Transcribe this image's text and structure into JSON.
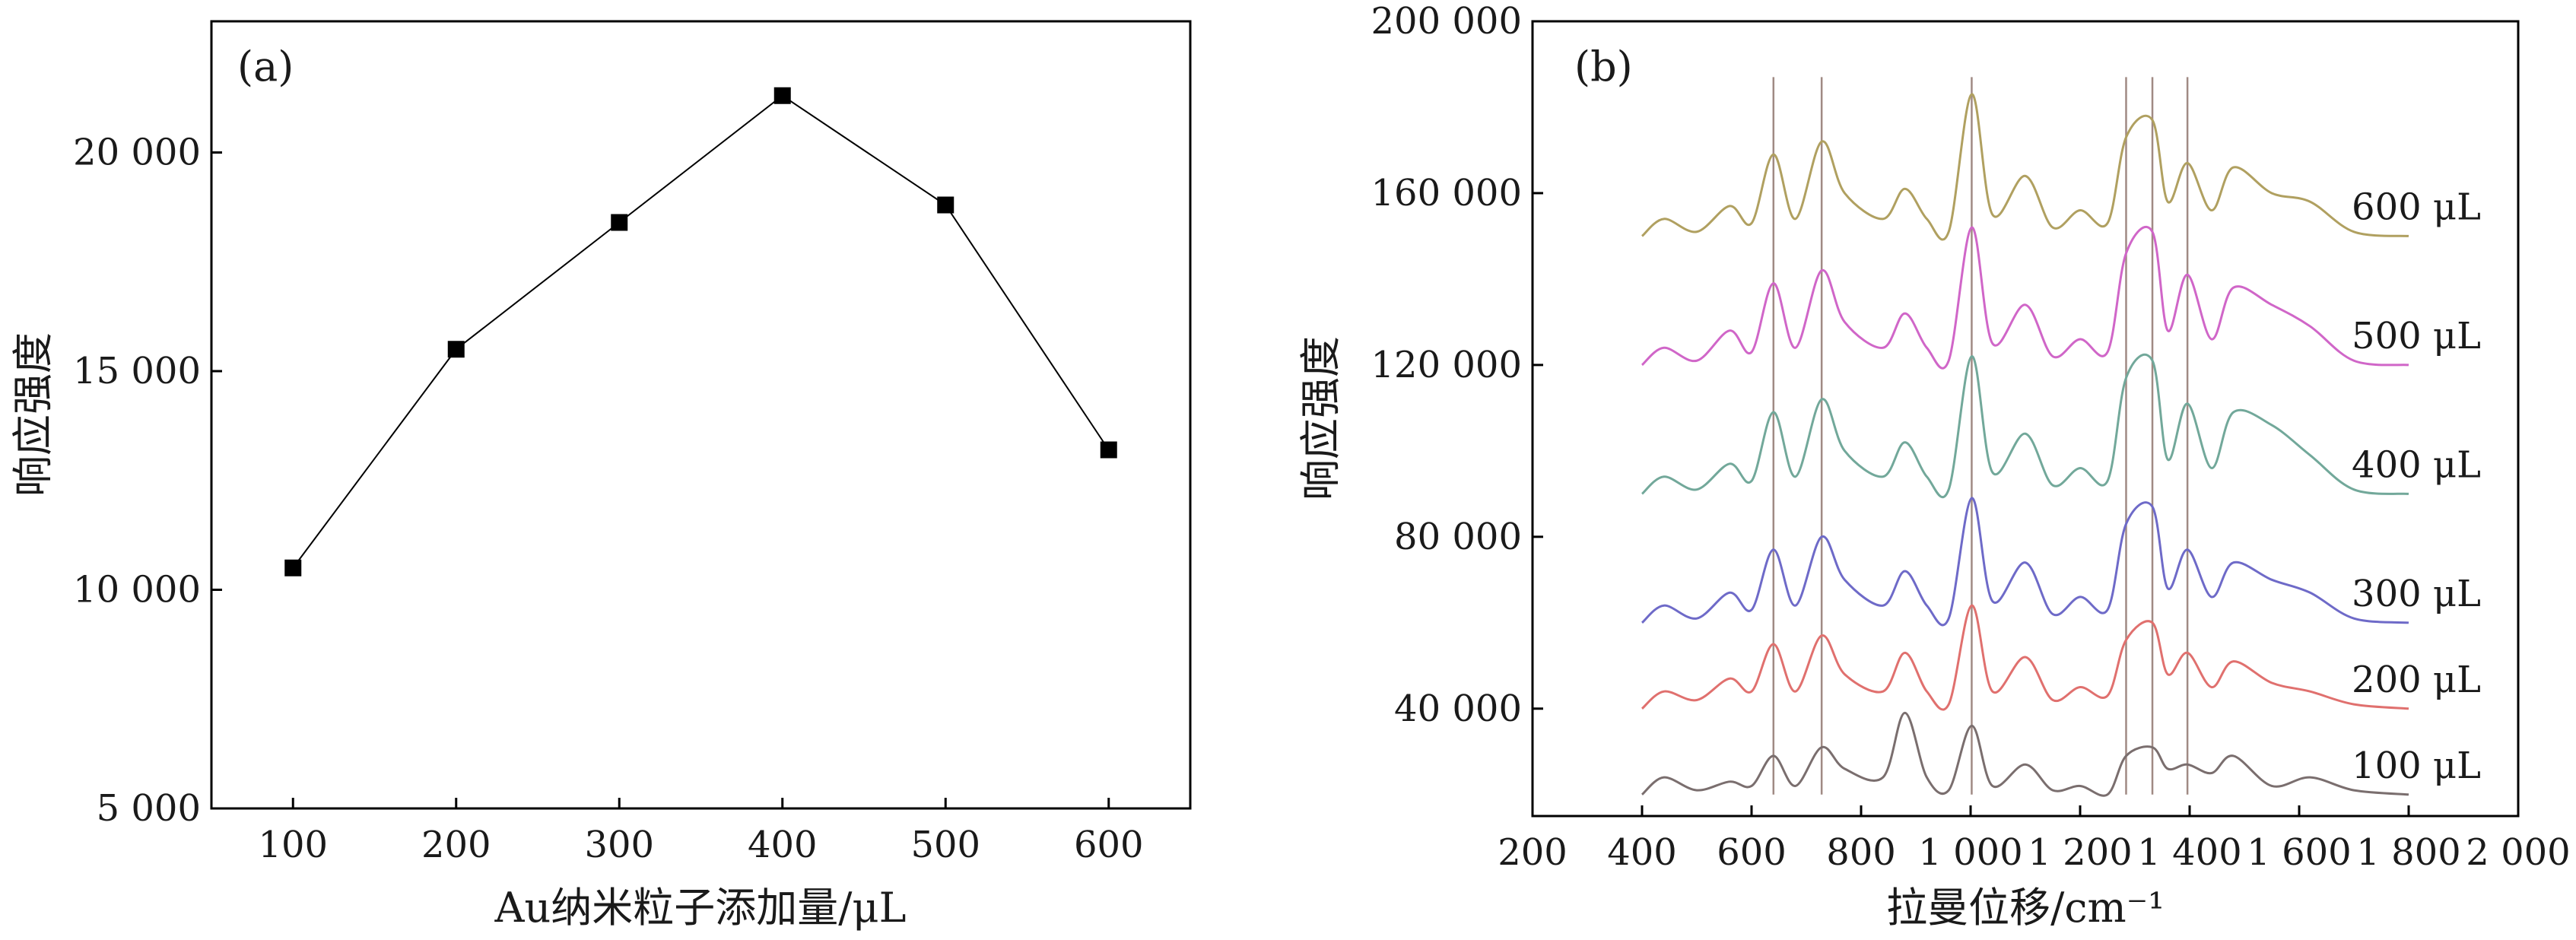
{
  "chart_data": [
    {
      "type": "line",
      "panel_label": "(a)",
      "xlabel": "Au纳米粒子添加量/μL",
      "ylabel": "响应强度",
      "xlim": [
        50,
        650
      ],
      "ylim": [
        5000,
        23000
      ],
      "x": [
        100,
        200,
        300,
        400,
        500,
        600
      ],
      "x_tick_labels": [
        "100",
        "200",
        "300",
        "400",
        "500",
        "600"
      ],
      "y_ticks": [
        5000,
        10000,
        15000,
        20000
      ],
      "y_tick_labels": [
        "5 000",
        "10 000",
        "15 000",
        "20 000"
      ],
      "series": [
        {
          "values": [
            10500,
            15500,
            18400,
            21300,
            18800,
            13200
          ],
          "color": "#000000",
          "marker": "square"
        }
      ],
      "grid": false
    },
    {
      "type": "line",
      "panel_label": "(b)",
      "xlabel": "拉曼位移/cm⁻¹",
      "ylabel": "响应强度",
      "xlim": [
        200,
        2000
      ],
      "ylim": [
        15000,
        200000
      ],
      "x_ticks": [
        200,
        400,
        600,
        800,
        1000,
        1200,
        1400,
        1600,
        1800,
        2000
      ],
      "x_tick_labels": [
        "200",
        "400",
        "600",
        "800",
        "1 000",
        "1 200",
        "1 400",
        "1 600",
        "1 800",
        "2 000"
      ],
      "y_ticks": [
        40000,
        80000,
        120000,
        160000,
        200000
      ],
      "y_tick_labels": [
        "40 000",
        "80 000",
        "120 000",
        "160 000",
        "200 000"
      ],
      "reference_lines_x": [
        640,
        728,
        1002,
        1284,
        1332,
        1396
      ],
      "reference_line_color": "#a08a84",
      "x": [
        400,
        440,
        500,
        560,
        600,
        640,
        680,
        728,
        770,
        840,
        880,
        920,
        960,
        1002,
        1040,
        1100,
        1150,
        1200,
        1250,
        1284,
        1332,
        1360,
        1396,
        1440,
        1480,
        1550,
        1620,
        1700,
        1800
      ],
      "series": [
        {
          "name": "100 μL",
          "color": "#7a6e6e",
          "baseline": 20000,
          "values": [
            20000,
            24000,
            21000,
            23000,
            22000,
            29000,
            22000,
            31000,
            26000,
            24000,
            39000,
            24000,
            21000,
            36000,
            22000,
            27000,
            21000,
            22000,
            20000,
            29000,
            31000,
            26000,
            27000,
            25000,
            29000,
            22000,
            24000,
            21000,
            20000
          ]
        },
        {
          "name": "200 μL",
          "color": "#e0706e",
          "baseline": 40000,
          "values": [
            40000,
            44000,
            42000,
            47000,
            44000,
            55000,
            44000,
            57000,
            48000,
            44000,
            53000,
            44000,
            41000,
            64000,
            44000,
            52000,
            42000,
            45000,
            43000,
            56000,
            60000,
            48000,
            53000,
            45000,
            51000,
            46000,
            44000,
            41000,
            40000
          ]
        },
        {
          "name": "300 μL",
          "color": "#6e6ac8",
          "baseline": 60000,
          "values": [
            60000,
            64000,
            61000,
            67000,
            63000,
            77000,
            64000,
            80000,
            70000,
            64000,
            72000,
            64000,
            61000,
            89000,
            65000,
            74000,
            62000,
            66000,
            63000,
            83000,
            87000,
            68000,
            77000,
            66000,
            74000,
            70000,
            67000,
            61000,
            60000
          ]
        },
        {
          "name": "400 μL",
          "color": "#72a89a",
          "baseline": 90000,
          "values": [
            90000,
            94000,
            91000,
            97000,
            93000,
            109000,
            94000,
            112000,
            100000,
            94000,
            102000,
            94000,
            91000,
            122000,
            95000,
            104000,
            92000,
            96000,
            93000,
            117000,
            121000,
            98000,
            111000,
            96000,
            109000,
            106000,
            99000,
            91000,
            90000
          ]
        },
        {
          "name": "500 μL",
          "color": "#d066c8",
          "baseline": 120000,
          "values": [
            120000,
            124000,
            121000,
            128000,
            123000,
            139000,
            124000,
            142000,
            130000,
            124000,
            132000,
            124000,
            121000,
            152000,
            125000,
            134000,
            122000,
            126000,
            123000,
            146000,
            151000,
            128000,
            141000,
            126000,
            138000,
            134000,
            129000,
            121000,
            120000
          ]
        },
        {
          "name": "600 μL",
          "color": "#b0a060",
          "baseline": 150000,
          "values": [
            150000,
            154000,
            151000,
            157000,
            153000,
            169000,
            154000,
            172000,
            160000,
            154000,
            161000,
            154000,
            151000,
            183000,
            155000,
            164000,
            152000,
            156000,
            153000,
            173000,
            177000,
            158000,
            167000,
            156000,
            166000,
            160000,
            158000,
            151000,
            150000
          ]
        }
      ],
      "grid": false
    }
  ]
}
